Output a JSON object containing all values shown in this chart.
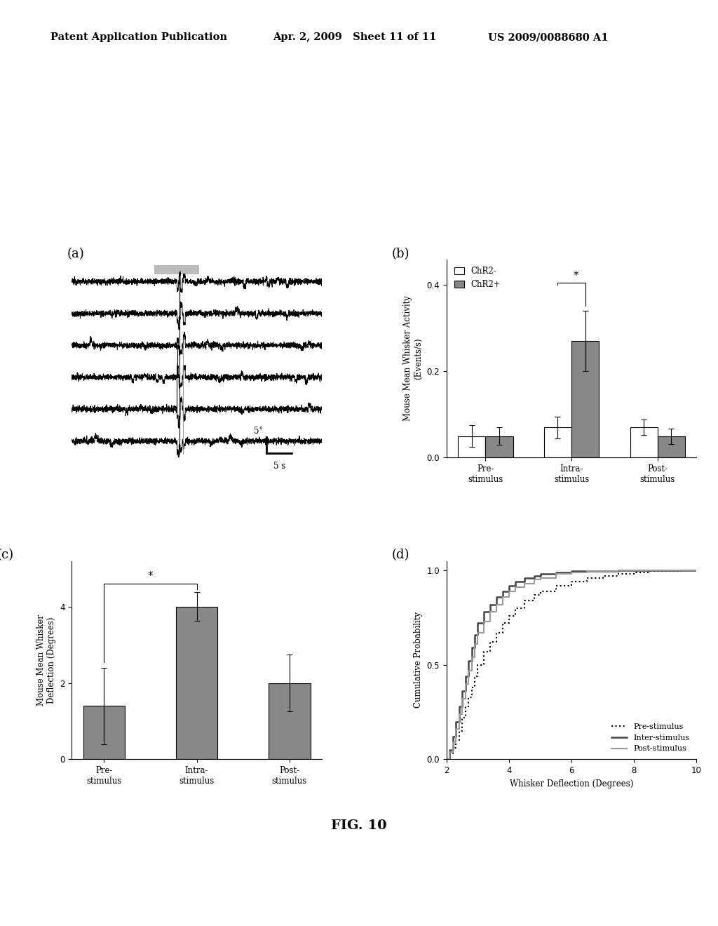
{
  "header_left": "Patent Application Publication",
  "header_mid": "Apr. 2, 2009   Sheet 11 of 11",
  "header_right": "US 2009/0088680 A1",
  "fig_label": "FIG. 10",
  "panel_a_label": "(a)",
  "panel_b_label": "(b)",
  "panel_c_label": "(c)",
  "panel_d_label": "(d)",
  "panel_b": {
    "categories": [
      "Pre-\nstimulus",
      "Intra-\nstimulus",
      "Post-\nstimulus"
    ],
    "chr2minus_values": [
      0.05,
      0.07,
      0.07
    ],
    "chr2plus_values": [
      0.05,
      0.27,
      0.05
    ],
    "chr2minus_errors": [
      0.025,
      0.025,
      0.018
    ],
    "chr2plus_errors": [
      0.02,
      0.07,
      0.018
    ],
    "chr2minus_intra_top": 0.405,
    "ylabel": "Mouse Mean Whisker Activity\n(Events/s)",
    "ylim": [
      0,
      0.46
    ],
    "yticks": [
      0,
      0.2,
      0.4
    ],
    "legend_chr2minus": "ChR2-",
    "legend_chr2plus": "ChR2+",
    "color_minus": "#ffffff",
    "color_plus": "#888888",
    "significance_star": "*"
  },
  "panel_c": {
    "categories": [
      "Pre-\nstimulus",
      "Intra-\nstimulus",
      "Post-\nstimulus"
    ],
    "values": [
      1.4,
      4.0,
      2.0
    ],
    "errors": [
      1.0,
      0.38,
      0.75
    ],
    "ylabel": "Mouse Mean Whisker\nDeflection (Degrees)",
    "ylim": [
      0,
      5.2
    ],
    "yticks": [
      0,
      2,
      4
    ],
    "bar_color": "#888888",
    "significance_star": "*"
  },
  "panel_d": {
    "ylabel": "Cumulative Probability",
    "xlabel": "Whisker Deflection (Degrees)",
    "ylim": [
      0,
      1.05
    ],
    "xlim": [
      2,
      10
    ],
    "xticks": [
      2,
      4,
      6,
      8,
      10
    ],
    "yticks": [
      0,
      0.5,
      1
    ],
    "legend_pre": "Pre-stimulus",
    "legend_inter": "Inter-stimulus",
    "legend_post": "Post-stimulus",
    "pre_x": [
      2.0,
      2.1,
      2.2,
      2.3,
      2.4,
      2.5,
      2.6,
      2.7,
      2.8,
      2.9,
      3.0,
      3.2,
      3.4,
      3.6,
      3.8,
      4.0,
      4.2,
      4.5,
      4.8,
      5.0,
      5.5,
      6.0,
      6.5,
      7.0,
      7.5,
      8.0,
      8.5,
      9.0,
      9.5,
      10.0
    ],
    "pre_y": [
      0.0,
      0.03,
      0.06,
      0.1,
      0.15,
      0.22,
      0.28,
      0.33,
      0.38,
      0.44,
      0.5,
      0.57,
      0.62,
      0.67,
      0.72,
      0.76,
      0.8,
      0.84,
      0.87,
      0.89,
      0.92,
      0.94,
      0.96,
      0.97,
      0.98,
      0.99,
      0.995,
      0.997,
      0.999,
      1.0
    ],
    "inter_x": [
      2.0,
      2.1,
      2.2,
      2.3,
      2.4,
      2.5,
      2.6,
      2.7,
      2.8,
      2.9,
      3.0,
      3.2,
      3.4,
      3.6,
      3.8,
      4.0,
      4.2,
      4.5,
      4.8,
      5.0,
      5.5,
      6.0,
      6.5,
      7.0,
      7.5,
      8.0,
      8.5,
      9.0,
      9.5,
      10.0
    ],
    "inter_y": [
      0.0,
      0.05,
      0.12,
      0.2,
      0.28,
      0.36,
      0.44,
      0.52,
      0.59,
      0.66,
      0.72,
      0.78,
      0.82,
      0.86,
      0.89,
      0.92,
      0.94,
      0.96,
      0.97,
      0.98,
      0.99,
      0.995,
      0.997,
      0.998,
      0.999,
      1.0,
      1.0,
      1.0,
      1.0,
      1.0
    ],
    "post_x": [
      2.0,
      2.1,
      2.2,
      2.3,
      2.4,
      2.5,
      2.6,
      2.7,
      2.8,
      2.9,
      3.0,
      3.2,
      3.4,
      3.6,
      3.8,
      4.0,
      4.2,
      4.5,
      4.8,
      5.0,
      5.5,
      6.0,
      6.5,
      7.0,
      7.5,
      8.0,
      8.5,
      9.0,
      9.5,
      10.0
    ],
    "post_y": [
      0.0,
      0.04,
      0.09,
      0.16,
      0.24,
      0.32,
      0.4,
      0.47,
      0.54,
      0.61,
      0.67,
      0.73,
      0.78,
      0.82,
      0.86,
      0.89,
      0.91,
      0.93,
      0.95,
      0.96,
      0.98,
      0.99,
      0.995,
      0.997,
      0.999,
      1.0,
      1.0,
      1.0,
      1.0,
      1.0
    ]
  },
  "background_color": "#ffffff",
  "text_color": "#000000"
}
